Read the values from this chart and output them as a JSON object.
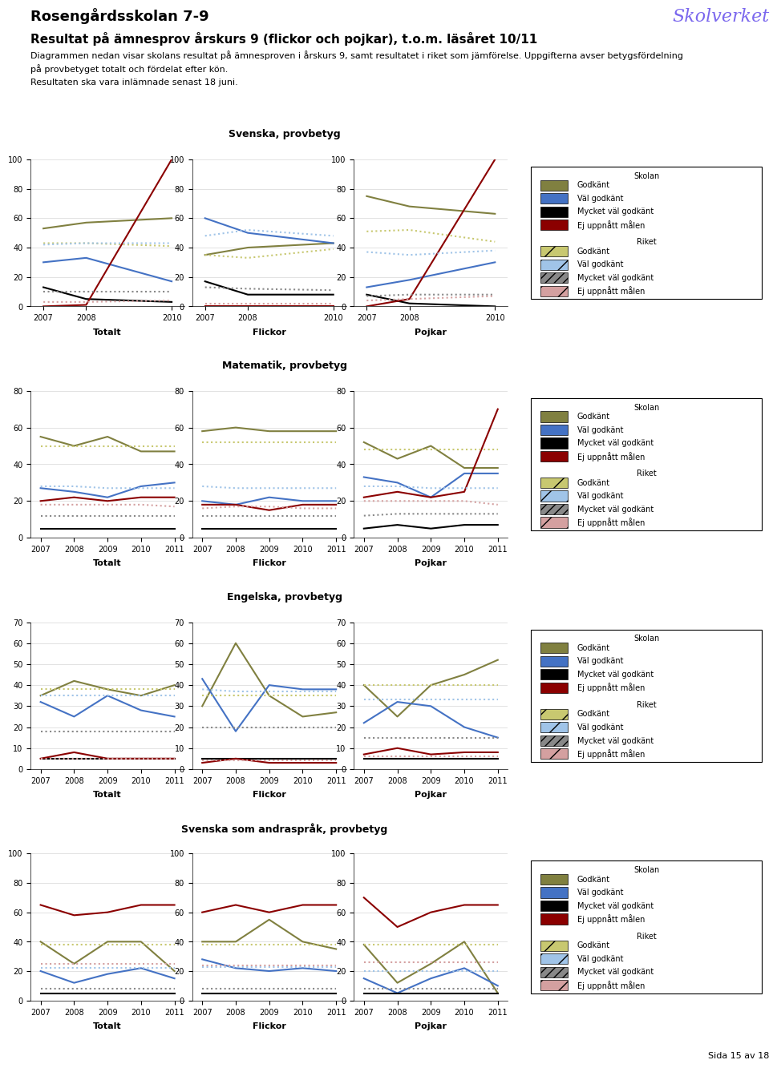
{
  "title_school": "Rosengårdsskolan 7-9",
  "title_main": "Resultat på ämnesprov årskurs 9 (flickor och pojkar), t.o.m. läsåret 10/11",
  "subtitle": "Diagrammen nedan visar skolans resultat på ämnesproven i årskurs 9, samt resultatet i riket som jämförelse. Uppgifterna avser betygsfördelning\npå provbetyget totalt och fördelat efter kön.\nResultaten ska vara inlämnade senast 18 juni.",
  "page_footer": "Sida 15 av 18",
  "sections": [
    {
      "title": "Svenska, provbetyg",
      "years": [
        2007,
        2008,
        2010
      ],
      "yticks": [
        0,
        20,
        40,
        60,
        80,
        100
      ],
      "ylim": [
        0,
        100
      ],
      "plots": [
        {
          "label": "Totalt",
          "school": {
            "godkant": [
              53,
              57,
              60
            ],
            "val_godkant": [
              30,
              33,
              17
            ],
            "mycket_val": [
              13,
              5,
              3
            ],
            "ej_uppnatt": [
              0,
              1,
              100
            ]
          },
          "riket": {
            "godkant": [
              43,
              43,
              41
            ],
            "val_godkant": [
              42,
              43,
              43
            ],
            "mycket_val": [
              10,
              10,
              10
            ],
            "ej_uppnatt": [
              3,
              3,
              4
            ]
          }
        },
        {
          "label": "Flickor",
          "school": {
            "godkant": [
              35,
              40,
              43
            ],
            "val_godkant": [
              60,
              50,
              43
            ],
            "mycket_val": [
              17,
              8,
              8
            ],
            "ej_uppnatt": [
              0,
              0,
              0
            ]
          },
          "riket": {
            "godkant": [
              35,
              33,
              39
            ],
            "val_godkant": [
              48,
              52,
              48
            ],
            "mycket_val": [
              13,
              12,
              11
            ],
            "ej_uppnatt": [
              2,
              2,
              2
            ]
          }
        },
        {
          "label": "Pojkar",
          "school": {
            "godkant": [
              75,
              68,
              63
            ],
            "val_godkant": [
              13,
              18,
              30
            ],
            "mycket_val": [
              8,
              2,
              0
            ],
            "ej_uppnatt": [
              0,
              5,
              100
            ]
          },
          "riket": {
            "godkant": [
              51,
              52,
              44
            ],
            "val_godkant": [
              37,
              35,
              38
            ],
            "mycket_val": [
              7,
              8,
              8
            ],
            "ej_uppnatt": [
              4,
              5,
              7
            ]
          }
        }
      ]
    },
    {
      "title": "Matematik, provbetyg",
      "years": [
        2007,
        2008,
        2009,
        2010,
        2011
      ],
      "yticks": [
        0,
        20,
        40,
        60,
        80
      ],
      "ylim": [
        0,
        80
      ],
      "plots": [
        {
          "label": "Totalt",
          "school": {
            "godkant": [
              55,
              50,
              55,
              47,
              47
            ],
            "val_godkant": [
              27,
              25,
              22,
              28,
              30
            ],
            "mycket_val": [
              5,
              5,
              5,
              5,
              5
            ],
            "ej_uppnatt": [
              20,
              22,
              20,
              22,
              22
            ]
          },
          "riket": {
            "godkant": [
              50,
              50,
              50,
              50,
              50
            ],
            "val_godkant": [
              28,
              28,
              27,
              27,
              27
            ],
            "mycket_val": [
              12,
              12,
              12,
              12,
              12
            ],
            "ej_uppnatt": [
              18,
              18,
              18,
              18,
              17
            ]
          }
        },
        {
          "label": "Flickor",
          "school": {
            "godkant": [
              58,
              60,
              58,
              58,
              58
            ],
            "val_godkant": [
              20,
              18,
              22,
              20,
              20
            ],
            "mycket_val": [
              5,
              5,
              5,
              5,
              5
            ],
            "ej_uppnatt": [
              18,
              18,
              15,
              18,
              18
            ]
          },
          "riket": {
            "godkant": [
              52,
              52,
              52,
              52,
              52
            ],
            "val_godkant": [
              28,
              27,
              27,
              27,
              27
            ],
            "mycket_val": [
              12,
              12,
              12,
              12,
              12
            ],
            "ej_uppnatt": [
              16,
              17,
              17,
              16,
              16
            ]
          }
        },
        {
          "label": "Pojkar",
          "school": {
            "godkant": [
              52,
              43,
              50,
              38,
              38
            ],
            "val_godkant": [
              33,
              30,
              22,
              35,
              35
            ],
            "mycket_val": [
              5,
              7,
              5,
              7,
              7
            ],
            "ej_uppnatt": [
              22,
              25,
              22,
              25,
              70
            ]
          },
          "riket": {
            "godkant": [
              48,
              48,
              48,
              48,
              48
            ],
            "val_godkant": [
              28,
              28,
              27,
              27,
              27
            ],
            "mycket_val": [
              12,
              13,
              13,
              13,
              13
            ],
            "ej_uppnatt": [
              20,
              20,
              20,
              20,
              18
            ]
          }
        }
      ]
    },
    {
      "title": "Engelska, provbetyg",
      "years": [
        2007,
        2008,
        2009,
        2010,
        2011
      ],
      "yticks": [
        0,
        10,
        20,
        30,
        40,
        50,
        60,
        70
      ],
      "ylim": [
        0,
        70
      ],
      "plots": [
        {
          "label": "Totalt",
          "school": {
            "godkant": [
              35,
              42,
              38,
              35,
              40
            ],
            "val_godkant": [
              32,
              25,
              35,
              28,
              25
            ],
            "mycket_val": [
              5,
              5,
              5,
              5,
              5
            ],
            "ej_uppnatt": [
              5,
              8,
              5,
              5,
              5
            ]
          },
          "riket": {
            "godkant": [
              38,
              38,
              38,
              38,
              38
            ],
            "val_godkant": [
              35,
              35,
              35,
              35,
              35
            ],
            "mycket_val": [
              18,
              18,
              18,
              18,
              18
            ],
            "ej_uppnatt": [
              5,
              5,
              5,
              5,
              5
            ]
          }
        },
        {
          "label": "Flickor",
          "school": {
            "godkant": [
              30,
              60,
              35,
              25,
              27
            ],
            "val_godkant": [
              43,
              18,
              40,
              38,
              38
            ],
            "mycket_val": [
              5,
              5,
              5,
              5,
              5
            ],
            "ej_uppnatt": [
              3,
              5,
              3,
              3,
              3
            ]
          },
          "riket": {
            "godkant": [
              35,
              35,
              35,
              35,
              35
            ],
            "val_godkant": [
              38,
              37,
              37,
              37,
              37
            ],
            "mycket_val": [
              20,
              20,
              20,
              20,
              20
            ],
            "ej_uppnatt": [
              4,
              4,
              4,
              4,
              4
            ]
          }
        },
        {
          "label": "Pojkar",
          "school": {
            "godkant": [
              40,
              25,
              40,
              45,
              52
            ],
            "val_godkant": [
              22,
              32,
              30,
              20,
              15
            ],
            "mycket_val": [
              5,
              5,
              5,
              5,
              5
            ],
            "ej_uppnatt": [
              7,
              10,
              7,
              8,
              8
            ]
          },
          "riket": {
            "godkant": [
              40,
              40,
              40,
              40,
              40
            ],
            "val_godkant": [
              33,
              33,
              33,
              33,
              33
            ],
            "mycket_val": [
              15,
              15,
              15,
              15,
              15
            ],
            "ej_uppnatt": [
              6,
              6,
              6,
              6,
              6
            ]
          }
        }
      ]
    },
    {
      "title": "Svenska som andraspråk, provbetyg",
      "years": [
        2007,
        2008,
        2009,
        2010,
        2011
      ],
      "yticks": [
        0,
        20,
        40,
        60,
        80,
        100
      ],
      "ylim": [
        0,
        100
      ],
      "plots": [
        {
          "label": "Totalt",
          "school": {
            "godkant": [
              40,
              25,
              40,
              40,
              20
            ],
            "val_godkant": [
              20,
              12,
              18,
              22,
              15
            ],
            "mycket_val": [
              5,
              5,
              5,
              5,
              5
            ],
            "ej_uppnatt": [
              65,
              58,
              60,
              65,
              65
            ]
          },
          "riket": {
            "godkant": [
              38,
              38,
              38,
              38,
              38
            ],
            "val_godkant": [
              22,
              22,
              22,
              22,
              22
            ],
            "mycket_val": [
              8,
              8,
              8,
              8,
              8
            ],
            "ej_uppnatt": [
              25,
              25,
              25,
              25,
              25
            ]
          }
        },
        {
          "label": "Flickor",
          "school": {
            "godkant": [
              40,
              40,
              55,
              40,
              35
            ],
            "val_godkant": [
              28,
              22,
              20,
              22,
              20
            ],
            "mycket_val": [
              5,
              5,
              5,
              5,
              5
            ],
            "ej_uppnatt": [
              60,
              65,
              60,
              65,
              65
            ]
          },
          "riket": {
            "godkant": [
              38,
              38,
              38,
              38,
              38
            ],
            "val_godkant": [
              23,
              23,
              23,
              23,
              23
            ],
            "mycket_val": [
              8,
              8,
              8,
              8,
              8
            ],
            "ej_uppnatt": [
              24,
              24,
              24,
              24,
              24
            ]
          }
        },
        {
          "label": "Pojkar",
          "school": {
            "godkant": [
              38,
              12,
              25,
              40,
              5
            ],
            "val_godkant": [
              15,
              5,
              15,
              22,
              10
            ],
            "mycket_val": [
              5,
              5,
              5,
              5,
              5
            ],
            "ej_uppnatt": [
              70,
              50,
              60,
              65,
              65
            ]
          },
          "riket": {
            "godkant": [
              38,
              38,
              38,
              38,
              38
            ],
            "val_godkant": [
              20,
              20,
              20,
              20,
              20
            ],
            "mycket_val": [
              8,
              8,
              8,
              8,
              8
            ],
            "ej_uppnatt": [
              26,
              26,
              26,
              26,
              26
            ]
          }
        }
      ]
    }
  ],
  "colors": {
    "school_godkant": "#808040",
    "school_val_godkant": "#4472C4",
    "school_mycket_val": "#000000",
    "school_ej_uppnatt": "#8B0000",
    "riket_godkant": "#C8C870",
    "riket_val_godkant": "#A0C4E8",
    "riket_mycket_val": "#888888",
    "riket_ej_uppnatt": "#D4A0A0"
  }
}
